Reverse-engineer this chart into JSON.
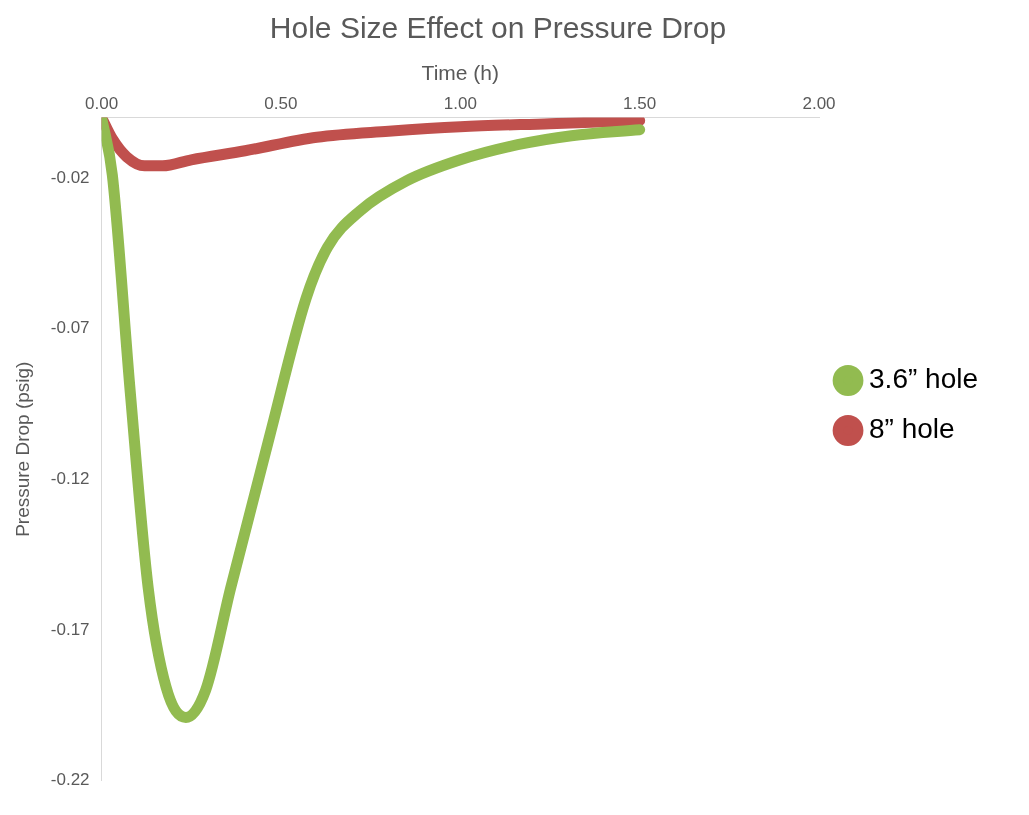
{
  "chart_data": {
    "type": "line",
    "title": "Hole Size Effect on Pressure Drop",
    "xlabel": "Time (h)",
    "ylabel": "Pressure Drop (psig)",
    "series": [
      {
        "name": "3.6” hole",
        "color": "#92bb50",
        "x": [
          0,
          0.03,
          0.08,
          0.13,
          0.18,
          0.235,
          0.29,
          0.36,
          0.47,
          0.57,
          0.63,
          0.72,
          0.85,
          1.0,
          1.16,
          1.31,
          1.5
        ],
        "values": [
          0,
          -0.019,
          -0.091,
          -0.156,
          -0.189,
          -0.199,
          -0.19,
          -0.156,
          -0.105,
          -0.06,
          -0.043,
          -0.031,
          -0.021,
          -0.014,
          -0.009,
          -0.006,
          -0.004
        ]
      },
      {
        "name": "8” hole",
        "color": "#c0504d",
        "x": [
          0,
          0.03,
          0.07,
          0.12,
          0.17,
          0.25,
          0.4,
          0.6,
          0.8,
          1.0,
          1.25,
          1.5
        ],
        "values": [
          0,
          -0.007,
          -0.013,
          -0.016,
          -0.016,
          -0.014,
          -0.011,
          -0.0065,
          -0.0045,
          -0.003,
          -0.002,
          -0.001
        ]
      }
    ],
    "xlim": [
      0,
      2
    ],
    "xticks": [
      {
        "value": 0,
        "label": "0.00"
      },
      {
        "value": 0.5,
        "label": "0.50"
      },
      {
        "value": 1,
        "label": "1.00"
      },
      {
        "value": 1.5,
        "label": "1.50"
      },
      {
        "value": 2,
        "label": "2.00"
      }
    ],
    "ylim": [
      -0.22,
      0
    ],
    "yticks": [
      -0.22,
      -0.17,
      -0.12,
      -0.07,
      -0.02
    ],
    "grid": false,
    "legend": "right",
    "marker": "none",
    "line_style": "solid"
  }
}
